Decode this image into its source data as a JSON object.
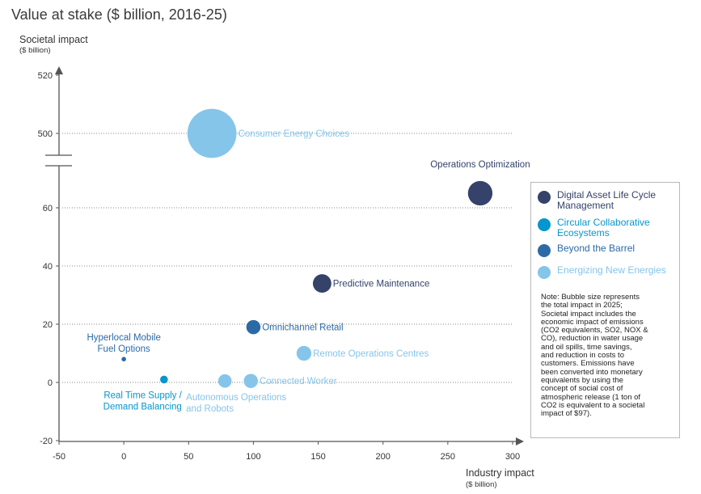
{
  "chart_data": {
    "type": "scatter",
    "subtype": "bubble",
    "title": "Value at stake ($ billion, 2016-25)",
    "ylabel": "Societal impact",
    "ylabel_unit": "($ billion)",
    "xlabel": "Industry impact",
    "xlabel_unit": "($ billion)",
    "xlim": [
      -50,
      300
    ],
    "ylim": [
      -20,
      520
    ],
    "y_axis_break": {
      "lower_max": 70,
      "upper_min": 490
    },
    "x_ticks": [
      "-50",
      "0",
      "50",
      "100",
      "150",
      "200",
      "250",
      "300"
    ],
    "y_ticks": [
      "520",
      "500",
      "60",
      "40",
      "20",
      "0",
      "-20"
    ],
    "gridlines": "dotted horizontal",
    "series": [
      {
        "name": "Digital Asset Life Cycle Management",
        "color": "#35426a"
      },
      {
        "name": "Circular Collaborative Ecosystems",
        "color": "#0596cd"
      },
      {
        "name": "Beyond the Barrel",
        "color": "#2b6aa6"
      },
      {
        "name": "Energizing New Energies",
        "color": "#85c5ea"
      }
    ],
    "points": [
      {
        "label": "Consumer Energy Choices",
        "series": "Energizing New Energies",
        "x": 68,
        "y": 500,
        "size": 120,
        "label_pos": "right"
      },
      {
        "label": "Operations Optimization",
        "series": "Digital Asset Life Cycle Management",
        "x": 275,
        "y": 65,
        "size": 30,
        "label_pos": "top"
      },
      {
        "label": "Predictive Maintenance",
        "series": "Digital Asset Life Cycle Management",
        "x": 153,
        "y": 34,
        "size": 17,
        "label_pos": "right"
      },
      {
        "label": "Omnichannel Retail",
        "series": "Beyond the Barrel",
        "x": 100,
        "y": 19,
        "size": 10,
        "label_pos": "right"
      },
      {
        "label": "Remote Operations Centres",
        "series": "Energizing New Energies",
        "x": 139,
        "y": 10,
        "size": 11,
        "label_pos": "right"
      },
      {
        "label": "Hyperlocal Mobile Fuel Options",
        "series": "Beyond the Barrel",
        "x": 0,
        "y": 8,
        "size": 0.4,
        "label_pos": "top"
      },
      {
        "label": "Real Time Supply / Demand Balancing",
        "series": "Circular Collaborative Ecosystems",
        "x": 31,
        "y": 1,
        "size": 3,
        "label_pos": "bottom-left"
      },
      {
        "label": "Autonomous Operations and Robots",
        "series": "Energizing New Energies",
        "x": 78,
        "y": 0.5,
        "size": 9,
        "label_pos": "bottom"
      },
      {
        "label": "Connected Worker",
        "series": "Energizing New Energies",
        "x": 98,
        "y": 0.5,
        "size": 10,
        "label_pos": "right"
      }
    ]
  },
  "legend": {
    "items": [
      {
        "label_lines": [
          "Digital Asset Life Cycle",
          "Management"
        ],
        "color": "#35426a"
      },
      {
        "label_lines": [
          "Circular Collaborative",
          "Ecosystems"
        ],
        "color": "#0596cd"
      },
      {
        "label_lines": [
          "Beyond the Barrel"
        ],
        "color": "#2b6aa6"
      },
      {
        "label_lines": [
          "Energizing New Energies"
        ],
        "color": "#85c5ea"
      }
    ],
    "note_lines": [
      "Note: Bubble size represents",
      "the total impact in 2025;",
      "Societal impact includes the",
      "economic impact of emissions",
      "(CO2 equivalents, SO2, NOX &",
      "CO), reduction in water usage",
      "and oil spills, time savings,",
      "and reduction in costs to",
      "customers. Emissions have",
      "been converted into monetary",
      "equivalents by using the",
      "concept of social cost of",
      "atmospheric release (1 ton of",
      "CO2 is equivalent to a societal",
      "impact of $97)."
    ]
  }
}
